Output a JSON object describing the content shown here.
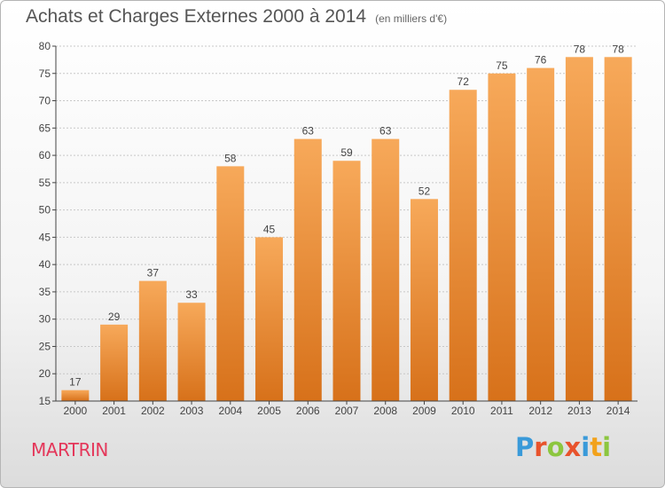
{
  "header": {
    "title": "Achats et Charges Externes 2000 à 2014",
    "subtitle": "(en milliers d'€)"
  },
  "footer": {
    "commune": "MARTRIN",
    "logo": [
      "P",
      "r",
      "o",
      "x",
      "i",
      "t",
      "i"
    ],
    "logo_colors": [
      "#3a9ad9",
      "#e8532c",
      "#8cc63f",
      "#e8532c",
      "#3a9ad9",
      "#f2a21b",
      "#8cc63f"
    ]
  },
  "colors": {
    "bar_light": "#f7a95a",
    "bar_dark": "#d7711a",
    "gridline": "#c8c8c8",
    "axis": "#444444"
  },
  "chart_data": {
    "type": "bar",
    "title": "Achats et Charges Externes 2000 à 2014",
    "subtitle": "(en milliers d'€)",
    "categories": [
      "2000",
      "2001",
      "2002",
      "2003",
      "2004",
      "2005",
      "2006",
      "2007",
      "2008",
      "2009",
      "2010",
      "2011",
      "2012",
      "2013",
      "2014"
    ],
    "values": [
      17,
      29,
      37,
      33,
      58,
      45,
      63,
      59,
      63,
      52,
      72,
      75,
      76,
      78,
      78
    ],
    "ylim": [
      15,
      80
    ],
    "yticks": [
      15,
      20,
      25,
      30,
      35,
      40,
      45,
      50,
      55,
      60,
      65,
      70,
      75,
      80
    ],
    "grid": true,
    "data_labels": true
  }
}
